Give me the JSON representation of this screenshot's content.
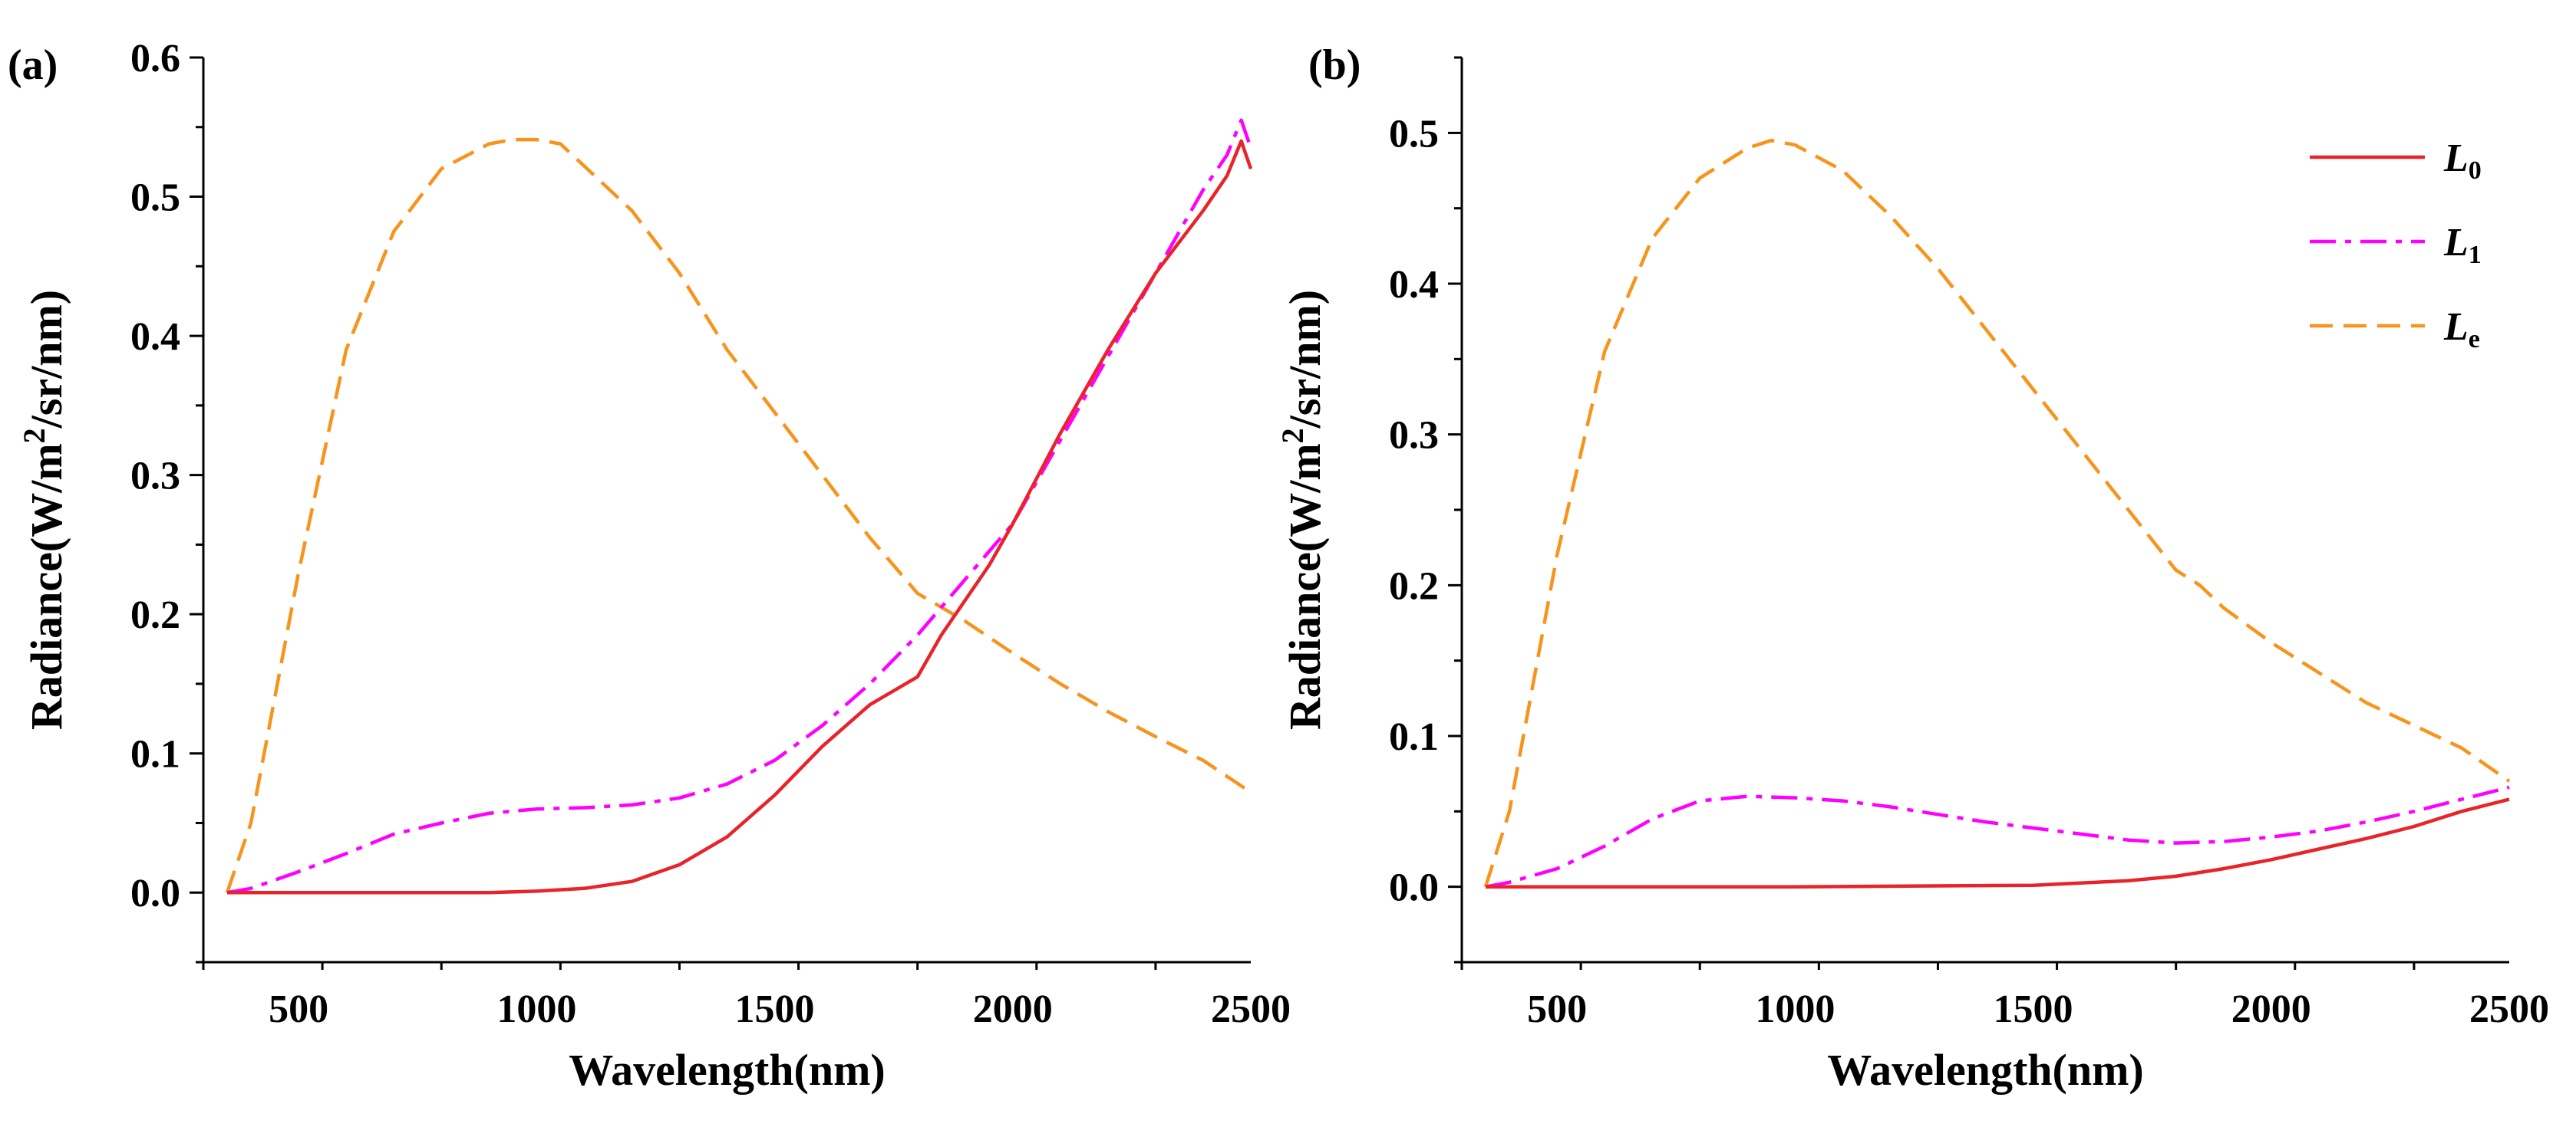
{
  "chart_data": [
    {
      "type": "line",
      "panel_label": "(a)",
      "xlabel": "Wavelength(nm)",
      "ylabel": "Radiance(W/m2/sr/nm)",
      "ylabel_parts": {
        "pre": "Radiance(W/m",
        "sup": "2",
        "post": "/sr/nm)"
      },
      "xlim": [
        300,
        2500
      ],
      "ylim": [
        -0.05,
        0.6
      ],
      "xticks": [
        500,
        1000,
        1500,
        2000,
        2500
      ],
      "yticks": [
        0.0,
        0.1,
        0.2,
        0.3,
        0.4,
        0.5,
        0.6
      ],
      "ytick_labels": [
        "0.0",
        "0.1",
        "0.2",
        "0.3",
        "0.4",
        "0.5",
        "0.6"
      ],
      "series": [
        {
          "name": "L0",
          "color": "#e8242a",
          "style": "solid",
          "x": [
            350,
            500,
            700,
            900,
            1000,
            1100,
            1200,
            1300,
            1400,
            1500,
            1600,
            1700,
            1800,
            1850,
            1900,
            1950,
            2000,
            2100,
            2200,
            2300,
            2400,
            2450,
            2480,
            2500
          ],
          "y": [
            0,
            0,
            0,
            0,
            0.001,
            0.003,
            0.008,
            0.02,
            0.04,
            0.07,
            0.105,
            0.135,
            0.155,
            0.185,
            0.21,
            0.235,
            0.265,
            0.33,
            0.39,
            0.445,
            0.49,
            0.515,
            0.54,
            0.52
          ]
        },
        {
          "name": "L1",
          "color": "#ff00ff",
          "style": "dashdot",
          "x": [
            350,
            400,
            500,
            600,
            700,
            800,
            900,
            1000,
            1100,
            1200,
            1300,
            1400,
            1500,
            1600,
            1700,
            1800,
            1900,
            2000,
            2100,
            2200,
            2300,
            2400,
            2450,
            2480,
            2500
          ],
          "y": [
            0,
            0.003,
            0.015,
            0.028,
            0.042,
            0.05,
            0.057,
            0.06,
            0.061,
            0.063,
            0.068,
            0.078,
            0.095,
            0.12,
            0.15,
            0.185,
            0.225,
            0.265,
            0.325,
            0.385,
            0.445,
            0.505,
            0.53,
            0.555,
            0.535
          ]
        },
        {
          "name": "Le",
          "color": "#f7941d",
          "style": "dashed",
          "x": [
            350,
            400,
            500,
            600,
            700,
            800,
            900,
            950,
            1000,
            1050,
            1100,
            1200,
            1300,
            1400,
            1500,
            1600,
            1700,
            1800,
            1900,
            2000,
            2100,
            2200,
            2300,
            2400,
            2500
          ],
          "y": [
            0,
            0.05,
            0.23,
            0.39,
            0.475,
            0.52,
            0.538,
            0.541,
            0.541,
            0.538,
            0.522,
            0.49,
            0.445,
            0.39,
            0.345,
            0.3,
            0.255,
            0.215,
            0.195,
            0.172,
            0.15,
            0.13,
            0.112,
            0.095,
            0.072
          ]
        }
      ]
    },
    {
      "type": "line",
      "panel_label": "(b)",
      "xlabel": "Wavelength(nm)",
      "ylabel": "Radiance(W/m2/sr/nm)",
      "ylabel_parts": {
        "pre": "Radiance(W/m",
        "sup": "2",
        "post": "/sr/nm)"
      },
      "xlim": [
        300,
        2500
      ],
      "ylim": [
        -0.05,
        0.55
      ],
      "xticks": [
        500,
        1000,
        1500,
        2000,
        2500
      ],
      "yticks": [
        0.0,
        0.1,
        0.2,
        0.3,
        0.4,
        0.5
      ],
      "ytick_labels": [
        "0.0",
        "0.1",
        "0.2",
        "0.3",
        "0.4",
        "0.5"
      ],
      "legend_position": "top-right",
      "legend": [
        {
          "label": "L",
          "sub": "0",
          "series": "L0"
        },
        {
          "label": "L",
          "sub": "1",
          "series": "L1"
        },
        {
          "label": "L",
          "sub": "e",
          "series": "Le"
        }
      ],
      "series": [
        {
          "name": "L0",
          "color": "#e8242a",
          "style": "solid",
          "x": [
            350,
            500,
            1000,
            1500,
            1700,
            1800,
            1900,
            2000,
            2100,
            2200,
            2300,
            2400,
            2500
          ],
          "y": [
            0,
            0,
            0,
            0.001,
            0.004,
            0.007,
            0.012,
            0.018,
            0.025,
            0.032,
            0.04,
            0.05,
            0.058
          ]
        },
        {
          "name": "L1",
          "color": "#ff00ff",
          "style": "dashdot",
          "x": [
            350,
            400,
            500,
            600,
            700,
            800,
            900,
            1000,
            1100,
            1200,
            1300,
            1400,
            1500,
            1600,
            1700,
            1800,
            1900,
            2000,
            2100,
            2200,
            2300,
            2400,
            2500
          ],
          "y": [
            0,
            0.003,
            0.012,
            0.027,
            0.045,
            0.057,
            0.06,
            0.059,
            0.057,
            0.053,
            0.048,
            0.043,
            0.039,
            0.035,
            0.031,
            0.029,
            0.03,
            0.033,
            0.037,
            0.043,
            0.05,
            0.058,
            0.066
          ]
        },
        {
          "name": "Le",
          "color": "#f7941d",
          "style": "dashed",
          "x": [
            350,
            400,
            500,
            600,
            700,
            800,
            900,
            950,
            1000,
            1100,
            1200,
            1300,
            1400,
            1500,
            1600,
            1700,
            1800,
            1850,
            1900,
            2000,
            2100,
            2200,
            2300,
            2400,
            2500
          ],
          "y": [
            0,
            0.05,
            0.22,
            0.355,
            0.43,
            0.47,
            0.49,
            0.495,
            0.492,
            0.475,
            0.445,
            0.41,
            0.37,
            0.33,
            0.29,
            0.25,
            0.21,
            0.2,
            0.185,
            0.162,
            0.142,
            0.122,
            0.107,
            0.092,
            0.07
          ]
        }
      ]
    }
  ]
}
